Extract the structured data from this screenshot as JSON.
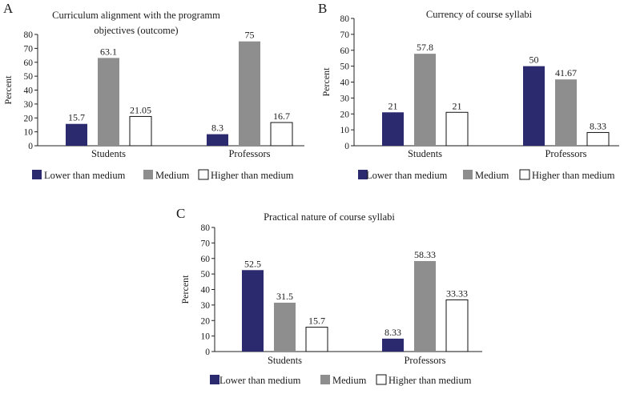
{
  "colors": {
    "lower": "#2b2a6e",
    "medium": "#8e8e8e",
    "higher": "#ffffff",
    "axis": "#222222"
  },
  "chart_data": [
    {
      "panel": "A",
      "type": "bar",
      "title_lines": [
        "Curriculum alignment with the programm",
        "objectives (outcome)"
      ],
      "ylabel": "Percent",
      "ylim": [
        0,
        80
      ],
      "yticks": [
        0,
        10,
        20,
        30,
        40,
        50,
        60,
        70,
        80
      ],
      "categories": [
        "Students",
        "Professors"
      ],
      "series": [
        {
          "name": "Lower than medium",
          "values": [
            15.7,
            8.3
          ],
          "labels": [
            "15.7",
            "8.3"
          ]
        },
        {
          "name": "Medium",
          "values": [
            63.1,
            75
          ],
          "labels": [
            "63.1",
            "75"
          ]
        },
        {
          "name": "Higher than medium",
          "values": [
            21.05,
            16.7
          ],
          "labels": [
            "21.05",
            "16.7"
          ]
        }
      ],
      "legend": [
        "Lower than medium",
        "Medium",
        "Higher than medium"
      ]
    },
    {
      "panel": "B",
      "type": "bar",
      "title_lines": [
        "Currency of course syllabi"
      ],
      "ylabel": "Percent",
      "ylim": [
        0,
        80
      ],
      "yticks": [
        0,
        10,
        20,
        30,
        40,
        50,
        60,
        70,
        80
      ],
      "categories": [
        "Students",
        "Professors"
      ],
      "series": [
        {
          "name": "Lower than medium",
          "values": [
            21,
            50
          ],
          "labels": [
            "21",
            "50"
          ]
        },
        {
          "name": "Medium",
          "values": [
            57.8,
            41.67
          ],
          "labels": [
            "57.8",
            "41.67"
          ]
        },
        {
          "name": "Higher than medium",
          "values": [
            21,
            8.33
          ],
          "labels": [
            "21",
            "8.33"
          ]
        }
      ],
      "legend": [
        "Lower than medium",
        "Medium",
        "Higher than medium"
      ]
    },
    {
      "panel": "C",
      "type": "bar",
      "title_lines": [
        "Practical nature of course syllabi"
      ],
      "ylabel": "Percent",
      "ylim": [
        0,
        80
      ],
      "yticks": [
        0,
        10,
        20,
        30,
        40,
        50,
        60,
        70,
        80
      ],
      "categories": [
        "Students",
        "Professors"
      ],
      "series": [
        {
          "name": "Lower than medium",
          "values": [
            52.5,
            8.33
          ],
          "labels": [
            "52.5",
            "8.33"
          ]
        },
        {
          "name": "Medium",
          "values": [
            31.5,
            58.33
          ],
          "labels": [
            "31.5",
            "58.33"
          ]
        },
        {
          "name": "Higher than medium",
          "values": [
            15.7,
            33.33
          ],
          "labels": [
            "15.7",
            "33.33"
          ]
        }
      ],
      "legend": [
        "Lower than medium",
        "Medium",
        "Higher than medium"
      ]
    }
  ]
}
